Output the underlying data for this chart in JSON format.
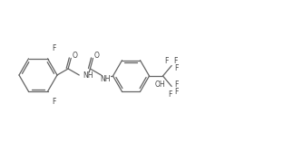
{
  "bg_color": "#ffffff",
  "line_color": "#646464",
  "text_color": "#404040",
  "line_width": 0.9,
  "font_size": 5.5,
  "figsize": [
    3.13,
    1.57
  ],
  "dpi": 100,
  "xlim": [
    0,
    313
  ],
  "ylim": [
    0,
    157
  ]
}
